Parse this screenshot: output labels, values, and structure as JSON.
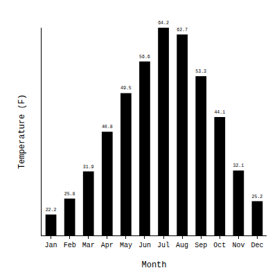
{
  "chart_data": {
    "type": "bar",
    "x_label": "Month",
    "y_label": "Temperature (F)",
    "categories": [
      "Jan",
      "Feb",
      "Mar",
      "Apr",
      "May",
      "Jun",
      "Jul",
      "Aug",
      "Sep",
      "Oct",
      "Nov",
      "Dec"
    ],
    "values": [
      22.2,
      25.8,
      31.9,
      40.8,
      49.5,
      56.6,
      64.2,
      62.7,
      53.3,
      44.1,
      32.1,
      25.2
    ],
    "color": "#000000",
    "ylim": [
      17.5,
      64.2
    ],
    "yticks": [],
    "grid": false,
    "data_labels": true,
    "tick_labels": "x"
  }
}
